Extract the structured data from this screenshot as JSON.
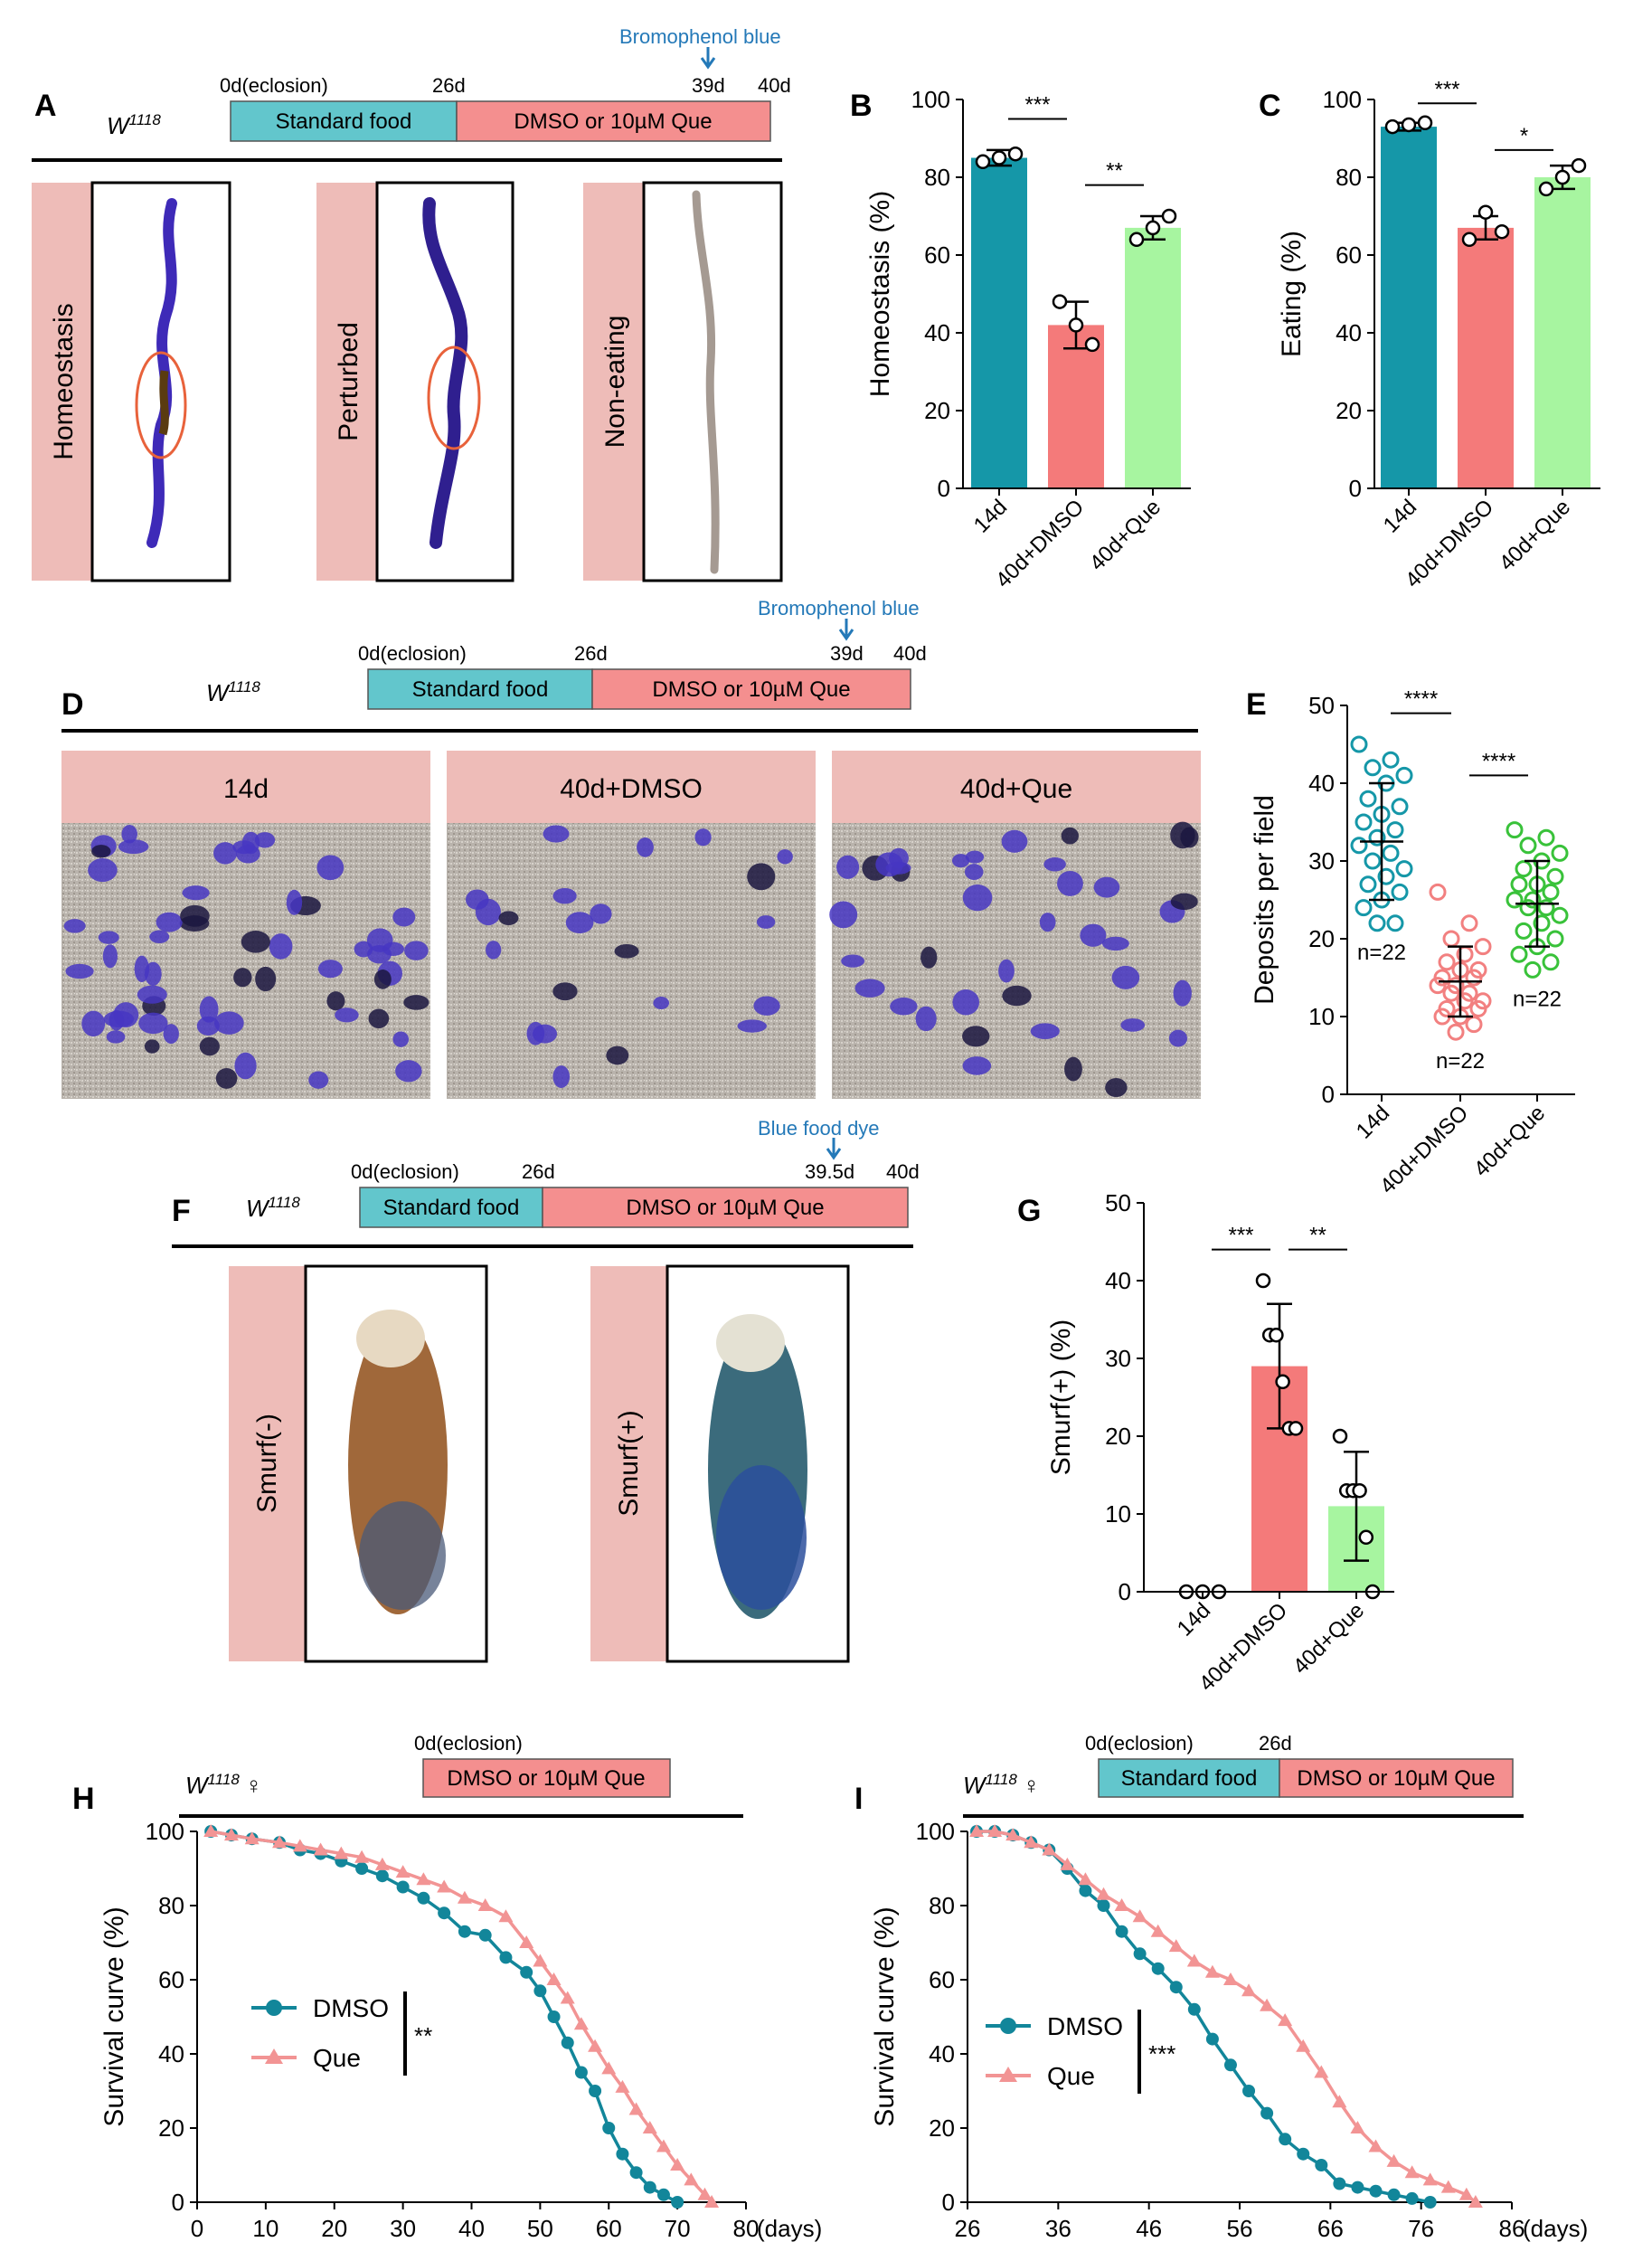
{
  "colors": {
    "teal": "#1597a8",
    "red": "#f47a7a",
    "green": "#a7f5a0",
    "timeline_teal": "#62c6cc",
    "timeline_red": "#f48f8f",
    "pink_label": "#eebcb8",
    "arrow_blue": "#2479b8",
    "dmso_line": "#12869a",
    "que_line": "#f29494",
    "dye_blue": "#3e2ab8",
    "circle_red": "#e8623b",
    "dot_teal": "#1597a8",
    "dot_red": "#f28080",
    "dot_green": "#39c23a"
  },
  "panels": {
    "A": {
      "letter": "A",
      "strain": "W",
      "strain_sup": "1118",
      "timeline": {
        "start": "0d(eclosion)",
        "mid": "26d",
        "marker": "39d",
        "end": "40d",
        "seg1": "Standard food",
        "seg2": "DMSO or 10µM Que",
        "indicator": "Bromophenol blue"
      },
      "images": [
        {
          "label": "Homeostasis"
        },
        {
          "label": "Perturbed"
        },
        {
          "label": "Non-eating"
        }
      ]
    },
    "D": {
      "letter": "D",
      "strain": "W",
      "strain_sup": "1118",
      "timeline": {
        "start": "0d(eclosion)",
        "mid": "26d",
        "marker": "39d",
        "end": "40d",
        "seg1": "Standard food",
        "seg2": "DMSO or 10µM Que",
        "indicator": "Bromophenol blue"
      },
      "images": [
        {
          "label": "14d"
        },
        {
          "label": "40d+DMSO"
        },
        {
          "label": "40d+Que"
        }
      ]
    },
    "F": {
      "letter": "F",
      "strain": "W",
      "strain_sup": "1118",
      "timeline": {
        "start": "0d(eclosion)",
        "mid": "26d",
        "marker": "39.5d",
        "end": "40d",
        "seg1": "Standard food",
        "seg2": "DMSO or 10µM Que",
        "indicator": "Blue food dye"
      },
      "images": [
        {
          "label": "Smurf(-)"
        },
        {
          "label": "Smurf(+)"
        }
      ]
    },
    "H": {
      "letter": "H",
      "strain": "W",
      "strain_sup": "1118",
      "sex": "♀",
      "timeline": {
        "start": "0d(eclosion)",
        "seg2": "DMSO or 10µM Que"
      }
    },
    "I": {
      "letter": "I",
      "strain": "W",
      "strain_sup": "1118",
      "sex": "♀",
      "timeline": {
        "start": "0d(eclosion)",
        "mid": "26d",
        "seg1": "Standard food",
        "seg2": "DMSO or 10µM Que"
      }
    }
  },
  "chart_data": [
    {
      "panel": "B",
      "type": "bar",
      "categories": [
        "14d",
        "40d+DMSO",
        "40d+Que"
      ],
      "values": [
        85,
        42,
        67
      ],
      "errors": [
        2,
        6,
        3
      ],
      "points": [
        [
          84,
          85,
          86
        ],
        [
          48,
          42,
          37
        ],
        [
          64,
          67,
          70
        ]
      ],
      "ylabel": "Homeostasis (%)",
      "ylim": [
        0,
        100
      ],
      "yticks": [
        0,
        20,
        40,
        60,
        80,
        100
      ],
      "significance": [
        {
          "from": 0,
          "to": 1,
          "label": "***"
        },
        {
          "from": 1,
          "to": 2,
          "label": "**"
        }
      ]
    },
    {
      "panel": "C",
      "type": "bar",
      "categories": [
        "14d",
        "40d+DMSO",
        "40d+Que"
      ],
      "values": [
        93,
        67,
        80
      ],
      "errors": [
        1,
        3,
        3
      ],
      "points": [
        [
          93,
          93.5,
          94
        ],
        [
          64,
          71,
          66
        ],
        [
          77,
          80,
          83
        ]
      ],
      "ylabel": "Eating (%)",
      "ylim": [
        0,
        100
      ],
      "yticks": [
        0,
        20,
        40,
        60,
        80,
        100
      ],
      "significance": [
        {
          "from": 0,
          "to": 1,
          "label": "***"
        },
        {
          "from": 1,
          "to": 2,
          "label": "*"
        }
      ]
    },
    {
      "panel": "E",
      "type": "scatter",
      "categories": [
        "14d",
        "40d+DMSO",
        "40d+Que"
      ],
      "means": [
        32.5,
        14.5,
        24.5
      ],
      "sd": [
        7.5,
        4.5,
        5.5
      ],
      "n_labels": [
        "n=22",
        "n=22",
        "n=22"
      ],
      "points": [
        [
          45,
          43,
          42,
          41,
          40,
          38,
          37,
          36,
          35,
          34,
          33,
          32,
          31,
          30,
          29,
          28,
          27,
          26,
          25,
          24,
          22,
          22
        ],
        [
          26,
          22,
          20,
          19,
          18,
          17,
          16,
          16,
          15,
          15,
          14,
          14,
          13,
          13,
          12,
          12,
          11,
          11,
          10,
          10,
          9,
          8
        ],
        [
          34,
          33,
          32,
          31,
          30,
          29,
          28,
          27,
          27,
          26,
          25,
          25,
          24,
          24,
          23,
          22,
          21,
          20,
          19,
          18,
          17,
          16
        ]
      ],
      "ylabel": "Deposits per field",
      "ylim": [
        0,
        50
      ],
      "yticks": [
        0,
        10,
        20,
        30,
        40,
        50
      ],
      "significance": [
        {
          "from": 0,
          "to": 1,
          "label": "****"
        },
        {
          "from": 1,
          "to": 2,
          "label": "****"
        }
      ]
    },
    {
      "panel": "G",
      "type": "bar",
      "categories": [
        "14d",
        "40d+DMSO",
        "40d+Que"
      ],
      "values": [
        0,
        29,
        11
      ],
      "errors": [
        0,
        8,
        7
      ],
      "points": [
        [
          0,
          0,
          0
        ],
        [
          40,
          33,
          33,
          27,
          21,
          21
        ],
        [
          20,
          13,
          13,
          13,
          7,
          0
        ]
      ],
      "ylabel": "Smurf(+) (%)",
      "ylim": [
        0,
        50
      ],
      "yticks": [
        0,
        10,
        20,
        30,
        40,
        50
      ],
      "significance": [
        {
          "from": 0,
          "to": 1,
          "label": "***"
        },
        {
          "from": 1,
          "to": 2,
          "label": "**"
        }
      ]
    },
    {
      "panel": "H",
      "type": "line",
      "ylabel": "Survival curve (%)",
      "xunit": "(days)",
      "xlim": [
        0,
        80
      ],
      "ylim": [
        0,
        100
      ],
      "xticks": [
        0,
        10,
        20,
        30,
        40,
        50,
        60,
        70,
        80
      ],
      "yticks": [
        0,
        20,
        40,
        60,
        80,
        100
      ],
      "legend_pos": "middle-left",
      "significance": "**",
      "series": [
        {
          "name": "DMSO",
          "marker": "circle",
          "x": [
            2,
            5,
            8,
            12,
            15,
            18,
            21,
            24,
            27,
            30,
            33,
            36,
            39,
            42,
            45,
            48,
            50,
            52,
            54,
            56,
            58,
            60,
            62,
            64,
            66,
            68,
            70
          ],
          "y": [
            100,
            99,
            98,
            97,
            95,
            94,
            92,
            90,
            88,
            85,
            82,
            78,
            73,
            72,
            66,
            62,
            57,
            50,
            43,
            35,
            30,
            20,
            13,
            8,
            4,
            2,
            0
          ]
        },
        {
          "name": "Que",
          "marker": "triangle",
          "x": [
            2,
            5,
            8,
            12,
            15,
            18,
            21,
            24,
            27,
            30,
            33,
            36,
            39,
            42,
            45,
            48,
            50,
            52,
            54,
            56,
            58,
            60,
            62,
            64,
            66,
            68,
            70,
            72,
            74,
            75
          ],
          "y": [
            100,
            99,
            98,
            97,
            96,
            95,
            94,
            93,
            91,
            89,
            87,
            85,
            82,
            80,
            77,
            70,
            65,
            60,
            55,
            48,
            42,
            36,
            31,
            25,
            20,
            15,
            10,
            6,
            2,
            0
          ]
        }
      ]
    },
    {
      "panel": "I",
      "type": "line",
      "ylabel": "Survival curve (%)",
      "xunit": "(days)",
      "xlim": [
        26,
        86
      ],
      "ylim": [
        0,
        100
      ],
      "xticks": [
        26,
        36,
        46,
        56,
        66,
        76,
        86
      ],
      "yticks": [
        0,
        20,
        40,
        60,
        80,
        100
      ],
      "legend_pos": "middle-left",
      "significance": "***",
      "series": [
        {
          "name": "DMSO",
          "marker": "circle",
          "x": [
            27,
            29,
            31,
            33,
            35,
            37,
            39,
            41,
            43,
            45,
            47,
            49,
            51,
            53,
            55,
            57,
            59,
            61,
            63,
            65,
            67,
            69,
            71,
            73,
            75,
            77
          ],
          "y": [
            100,
            100,
            99,
            97,
            95,
            90,
            84,
            80,
            73,
            67,
            63,
            58,
            52,
            44,
            37,
            30,
            24,
            17,
            13,
            10,
            5,
            4,
            3,
            2,
            1,
            0
          ]
        },
        {
          "name": "Que",
          "marker": "triangle",
          "x": [
            27,
            29,
            31,
            33,
            35,
            37,
            39,
            41,
            43,
            45,
            47,
            49,
            51,
            53,
            55,
            57,
            59,
            61,
            63,
            65,
            67,
            69,
            71,
            73,
            75,
            77,
            79,
            81,
            82
          ],
          "y": [
            100,
            100,
            99,
            97,
            95,
            91,
            87,
            83,
            80,
            77,
            73,
            69,
            65,
            62,
            60,
            57,
            53,
            49,
            42,
            35,
            27,
            20,
            15,
            11,
            8,
            6,
            4,
            2,
            0
          ]
        }
      ]
    }
  ]
}
